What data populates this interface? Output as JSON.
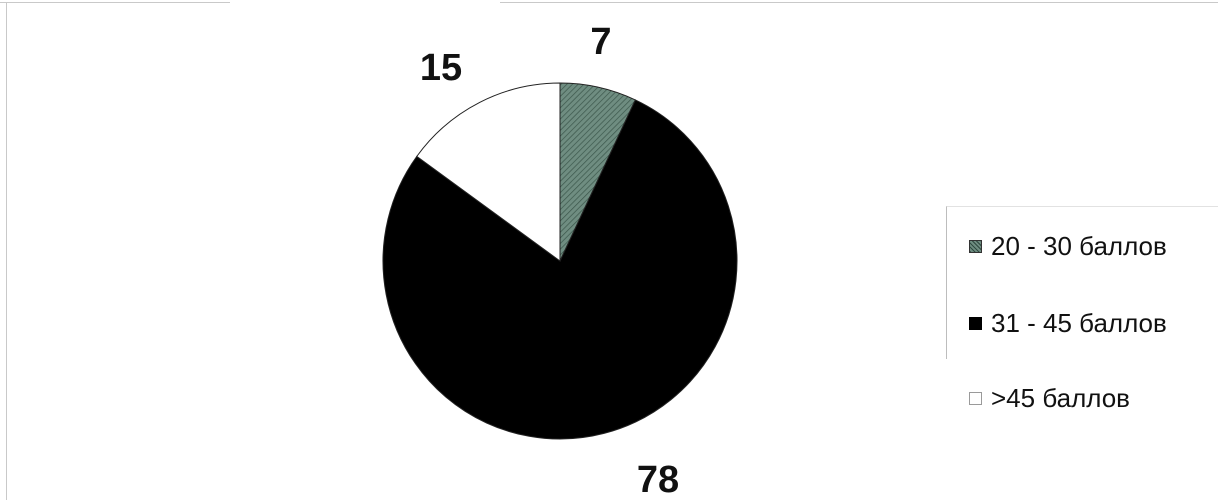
{
  "chart_data": {
    "type": "pie",
    "categories": [
      "20 - 30 баллов",
      "31 - 45 баллов",
      ">45 баллов"
    ],
    "values": [
      7,
      78,
      15
    ],
    "data_labels": [
      "7",
      "78",
      "15"
    ],
    "colors": [
      "#5f7d71",
      "#000000",
      "#ffffff"
    ],
    "legend_position": "right",
    "title": ""
  }
}
